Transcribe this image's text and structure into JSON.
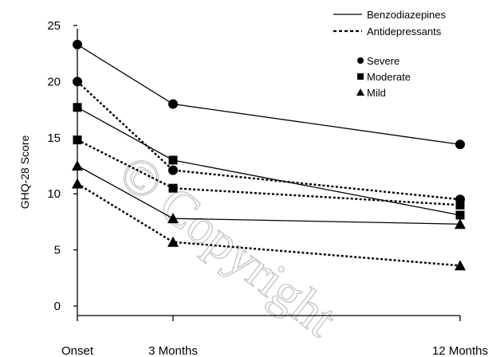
{
  "chart_data": {
    "type": "line",
    "ylabel": "GHQ-28 Score",
    "categories": [
      "Onset",
      "3 Months",
      "12 Months"
    ],
    "x_values": [
      0,
      3,
      12
    ],
    "ylim": [
      0,
      25
    ],
    "yticks": [
      0,
      5,
      10,
      15,
      20,
      25
    ],
    "grid": false,
    "legend_position": "top-right",
    "legend": {
      "lines": [
        {
          "label": "Benzodiazepines",
          "style": "solid"
        },
        {
          "label": "Antidepressants",
          "style": "dashed"
        }
      ],
      "markers": [
        {
          "label": "Severe",
          "marker": "circle"
        },
        {
          "label": "Moderate",
          "marker": "square"
        },
        {
          "label": "Mild",
          "marker": "triangle"
        }
      ]
    },
    "series": [
      {
        "treatment": "Benzodiazepines",
        "severity": "Severe",
        "style": "solid",
        "marker": "circle",
        "values": [
          23.3,
          18.0,
          14.4
        ]
      },
      {
        "treatment": "Benzodiazepines",
        "severity": "Moderate",
        "style": "solid",
        "marker": "square",
        "values": [
          17.7,
          13.0,
          8.1
        ]
      },
      {
        "treatment": "Benzodiazepines",
        "severity": "Mild",
        "style": "solid",
        "marker": "triangle",
        "values": [
          12.5,
          7.8,
          7.3
        ]
      },
      {
        "treatment": "Antidepressants",
        "severity": "Severe",
        "style": "dashed",
        "marker": "circle",
        "values": [
          20.0,
          12.1,
          9.5
        ]
      },
      {
        "treatment": "Antidepressants",
        "severity": "Moderate",
        "style": "dashed",
        "marker": "square",
        "values": [
          14.8,
          10.5,
          9.0
        ]
      },
      {
        "treatment": "Antidepressants",
        "severity": "Mild",
        "style": "dashed",
        "marker": "triangle",
        "values": [
          10.9,
          5.7,
          3.6
        ]
      }
    ],
    "watermark": "© Copyright"
  }
}
